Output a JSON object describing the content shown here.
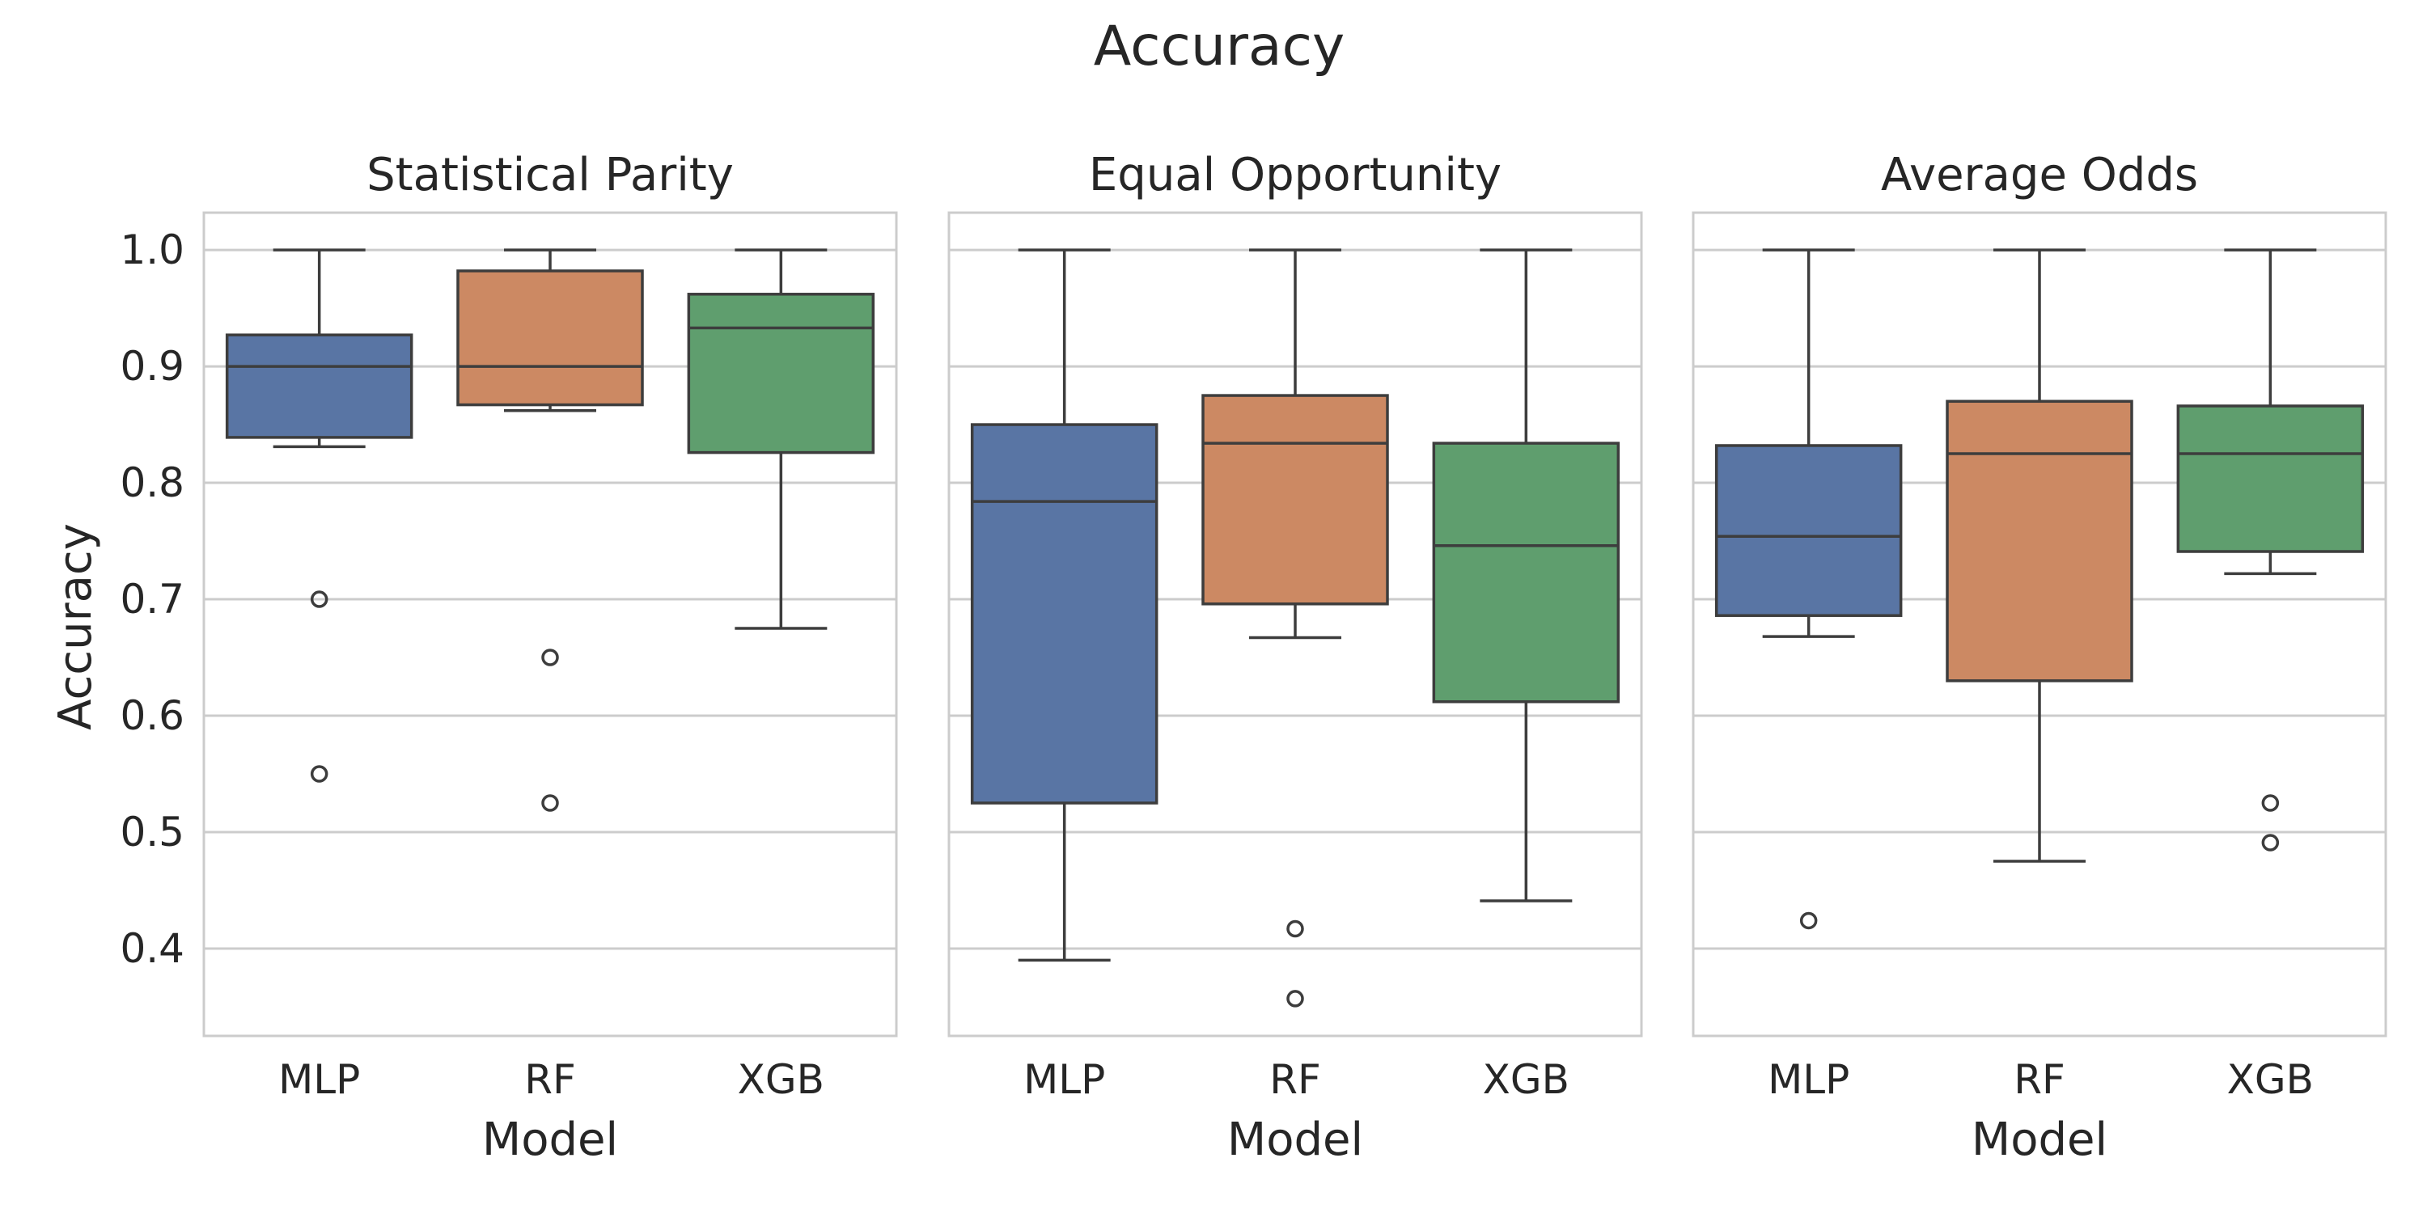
{
  "figure": {
    "title": "Accuracy"
  },
  "chart_data": [
    {
      "type": "box",
      "title": "Statistical Parity",
      "xlabel": "Model",
      "ylabel": "Accuracy",
      "categories": [
        "MLP",
        "RF",
        "XGB"
      ],
      "ylim": [
        0.325,
        1.032
      ],
      "yticks": [
        "0.4",
        "0.5",
        "0.6",
        "0.7",
        "0.8",
        "0.9",
        "1.0"
      ],
      "grid": true,
      "boxes": [
        {
          "category": "MLP",
          "whisker_low": 0.831,
          "q1": 0.839,
          "median": 0.9,
          "q3": 0.927,
          "whisker_high": 1.0,
          "outliers": [
            0.7,
            0.55
          ],
          "color": "#5975a4"
        },
        {
          "category": "RF",
          "whisker_low": 0.862,
          "q1": 0.867,
          "median": 0.9,
          "q3": 0.982,
          "whisker_high": 1.0,
          "outliers": [
            0.65,
            0.525
          ],
          "color": "#cc8963"
        },
        {
          "category": "XGB",
          "whisker_low": 0.675,
          "q1": 0.826,
          "median": 0.933,
          "q3": 0.962,
          "whisker_high": 1.0,
          "outliers": [],
          "color": "#5f9e6e"
        }
      ]
    },
    {
      "type": "box",
      "title": "Equal Opportunity",
      "xlabel": "Model",
      "ylabel": "",
      "categories": [
        "MLP",
        "RF",
        "XGB"
      ],
      "ylim": [
        0.325,
        1.032
      ],
      "grid": true,
      "boxes": [
        {
          "category": "MLP",
          "whisker_low": 0.39,
          "q1": 0.525,
          "median": 0.784,
          "q3": 0.85,
          "whisker_high": 1.0,
          "outliers": [],
          "color": "#5975a4"
        },
        {
          "category": "RF",
          "whisker_low": 0.667,
          "q1": 0.696,
          "median": 0.834,
          "q3": 0.875,
          "whisker_high": 1.0,
          "outliers": [
            0.417,
            0.357
          ],
          "color": "#cc8963"
        },
        {
          "category": "XGB",
          "whisker_low": 0.441,
          "q1": 0.612,
          "median": 0.746,
          "q3": 0.834,
          "whisker_high": 1.0,
          "outliers": [],
          "color": "#5f9e6e"
        }
      ]
    },
    {
      "type": "box",
      "title": "Average Odds",
      "xlabel": "Model",
      "ylabel": "",
      "categories": [
        "MLP",
        "RF",
        "XGB"
      ],
      "ylim": [
        0.325,
        1.032
      ],
      "grid": true,
      "boxes": [
        {
          "category": "MLP",
          "whisker_low": 0.668,
          "q1": 0.686,
          "median": 0.754,
          "q3": 0.832,
          "whisker_high": 1.0,
          "outliers": [
            0.424
          ],
          "color": "#5975a4"
        },
        {
          "category": "RF",
          "whisker_low": 0.475,
          "q1": 0.63,
          "median": 0.825,
          "q3": 0.87,
          "whisker_high": 1.0,
          "outliers": [],
          "color": "#cc8963"
        },
        {
          "category": "XGB",
          "whisker_low": 0.722,
          "q1": 0.741,
          "median": 0.825,
          "q3": 0.866,
          "whisker_high": 1.0,
          "outliers": [
            0.525,
            0.491
          ],
          "color": "#5f9e6e"
        }
      ]
    }
  ]
}
